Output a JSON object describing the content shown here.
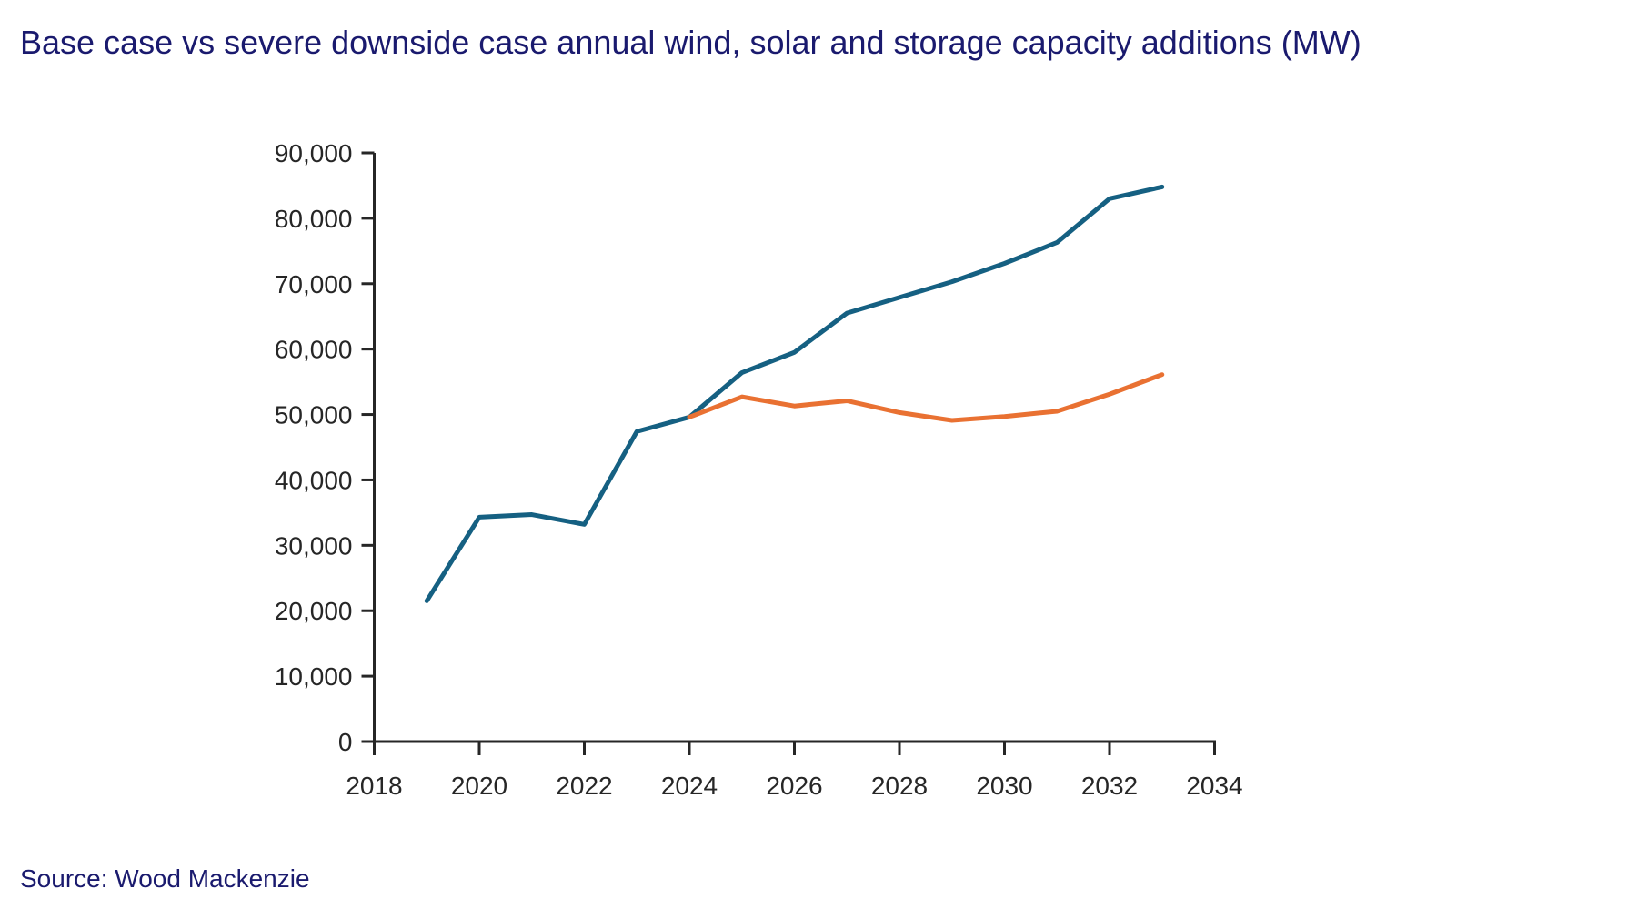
{
  "chart_data": {
    "type": "line",
    "title": "Base case vs severe downside case annual wind, solar and storage capacity additions (MW)",
    "source": "Source: Wood Mackenzie",
    "xlabel": "",
    "ylabel": "",
    "xlim": [
      2018,
      2034
    ],
    "ylim": [
      0,
      90000
    ],
    "grid": false,
    "legend": "none",
    "x_ticks": [
      2018,
      2020,
      2022,
      2024,
      2026,
      2028,
      2030,
      2032,
      2034
    ],
    "y_ticks": [
      0,
      10000,
      20000,
      30000,
      40000,
      50000,
      60000,
      70000,
      80000,
      90000
    ],
    "y_tick_labels": [
      "0",
      "10,000",
      "20,000",
      "30,000",
      "40,000",
      "50,000",
      "60,000",
      "70,000",
      "80,000",
      "90,000"
    ],
    "series": [
      {
        "name": "Base case",
        "color": "#156082",
        "x": [
          2019,
          2020,
          2021,
          2022,
          2023,
          2024,
          2025,
          2026,
          2027,
          2028,
          2029,
          2030,
          2031,
          2032,
          2033
        ],
        "values": [
          21500,
          34300,
          34700,
          33200,
          47400,
          49600,
          56400,
          59500,
          65500,
          67900,
          70300,
          73100,
          76300,
          83000,
          84800
        ]
      },
      {
        "name": "Severe downside case",
        "color": "#E97132",
        "x": [
          2024,
          2025,
          2026,
          2027,
          2028,
          2029,
          2030,
          2031,
          2032,
          2033
        ],
        "values": [
          49600,
          52700,
          51300,
          52100,
          50300,
          49100,
          49700,
          50500,
          53100,
          56100
        ]
      }
    ]
  },
  "colors": {
    "title": "#1A1A6E",
    "axis": "#262626",
    "tick_label": "#262626",
    "background": "#FFFFFF"
  }
}
